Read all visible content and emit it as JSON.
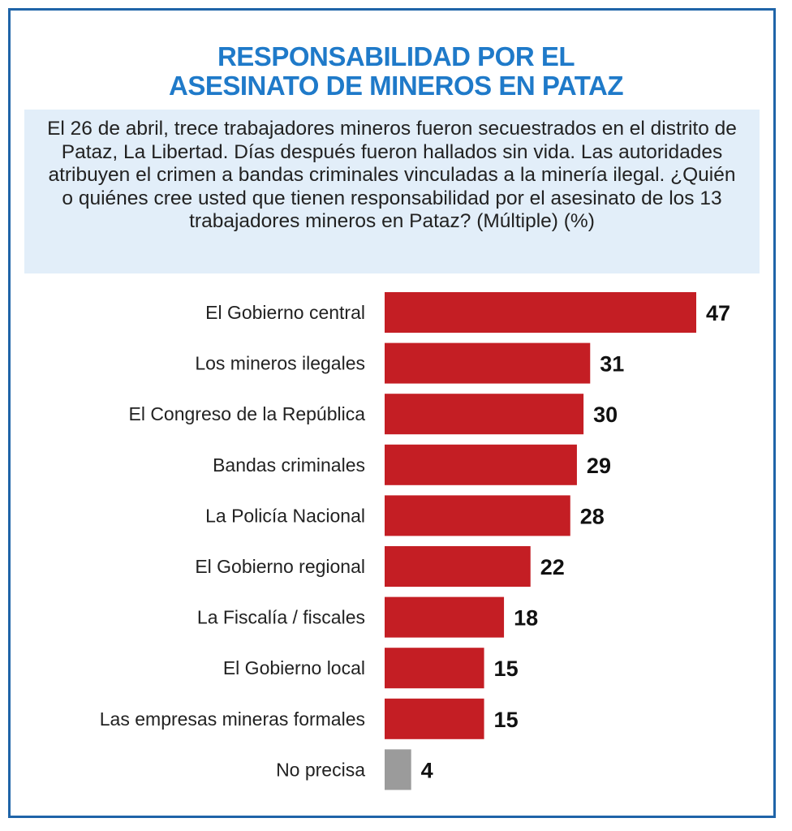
{
  "title_lines": [
    "RESPONSABILIDAD POR EL",
    "ASESINATO DE MINEROS EN PATAZ"
  ],
  "question": "El 26 de abril, trece trabajadores mineros fueron secuestrados en el distrito de Pataz, La Libertad. Días después fueron hallados sin vida. Las autoridades atribuyen el crimen a bandas criminales vinculadas a la minería ilegal. ¿Quién o quiénes cree usted que tienen responsabilidad por el asesinato de los 13 trabajadores mineros en Pataz? (Múltiple) (%)",
  "colors": {
    "title": "#1f7ac9",
    "frame": "#1f64a8",
    "question_bg": "#e2eef9",
    "bar": "#c41e24",
    "bar_other": "#9b9b9b"
  },
  "chart_data": {
    "type": "bar",
    "orientation": "horizontal",
    "unit": "%",
    "categories": [
      "El Gobierno central",
      "Los mineros ilegales",
      "El Congreso de la República",
      "Bandas criminales",
      "La Policía Nacional",
      "El Gobierno regional",
      "La Fiscalía / fiscales",
      "El Gobierno local",
      "Las empresas mineras formales",
      "No precisa"
    ],
    "values": [
      47,
      31,
      30,
      29,
      28,
      22,
      18,
      15,
      15,
      4
    ],
    "highlight_gray": [
      "No precisa"
    ],
    "value_labels": [
      "47",
      "31",
      "30",
      "29",
      "28",
      "22",
      "18",
      "15",
      "15",
      "4"
    ],
    "xlim": [
      0,
      47
    ]
  }
}
